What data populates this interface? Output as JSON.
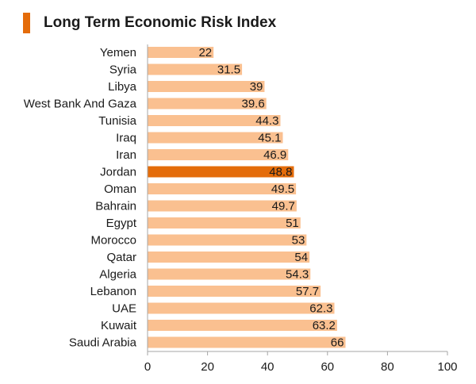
{
  "header": {
    "title": "Long Term Economic Risk Index"
  },
  "colors": {
    "accent": "#e46c0a",
    "bar": "#fac090",
    "highlight": "#e46c0a"
  },
  "chart_data": {
    "type": "bar",
    "orientation": "horizontal",
    "title": "Long Term Economic Risk Index",
    "xlabel": "",
    "ylabel": "",
    "xlim": [
      0,
      100
    ],
    "xticks": [
      0,
      20,
      40,
      60,
      80,
      100
    ],
    "grid": false,
    "legend": "none",
    "highlighted_category": "Jordan",
    "categories": [
      "Yemen",
      "Syria",
      "Libya",
      "West Bank And Gaza",
      "Tunisia",
      "Iraq",
      "Iran",
      "Jordan",
      "Oman",
      "Bahrain",
      "Egypt",
      "Morocco",
      "Qatar",
      "Algeria",
      "Lebanon",
      "UAE",
      "Kuwait",
      "Saudi Arabia"
    ],
    "values": [
      22,
      31.5,
      39,
      39.6,
      44.3,
      45.1,
      46.9,
      48.8,
      49.5,
      49.7,
      51,
      53,
      54,
      54.3,
      57.7,
      62.3,
      63.2,
      66
    ],
    "value_labels": [
      "22",
      "31.5",
      "39",
      "39.6",
      "44.3",
      "45.1",
      "46.9",
      "48.8",
      "49.5",
      "49.7",
      "51",
      "53",
      "54",
      "54.3",
      "57.7",
      "62.3",
      "63.2",
      "66"
    ]
  }
}
